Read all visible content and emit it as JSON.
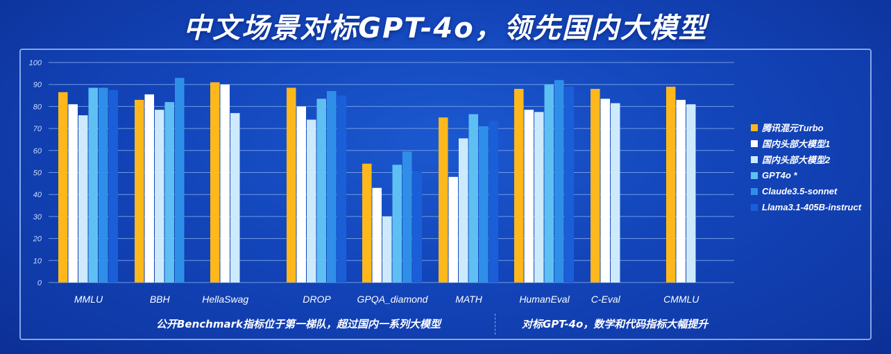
{
  "title": "中文场景对标GPT-4o，领先国内大模型",
  "colors": {
    "series": [
      "#ffb81c",
      "#ffffff",
      "#cdeafc",
      "#5ec0f2",
      "#2f8fe8",
      "#1a5fd8"
    ],
    "grid": "#6f9be6",
    "axis_text": "#c8dcff"
  },
  "chart_data": {
    "type": "bar",
    "title": "中文场景对标GPT-4o，领先国内大模型",
    "xlabel": "",
    "ylabel": "",
    "ylim": [
      0,
      100
    ],
    "yticks": [
      0,
      10,
      20,
      30,
      40,
      50,
      60,
      70,
      80,
      90,
      100
    ],
    "grid": true,
    "legend_position": "right",
    "categories": [
      "MMLU",
      "BBH",
      "HellaSwag",
      "DROP",
      "GPQA_diamond",
      "MATH",
      "HumanEval",
      "C-Eval",
      "CMMLU"
    ],
    "series": [
      {
        "name": "腾讯混元Turbo",
        "values": [
          86.5,
          83.0,
          91.0,
          88.5,
          54.0,
          75.0,
          88.0,
          88.0,
          89.0
        ]
      },
      {
        "name": "国内头部大模型1",
        "values": [
          81.0,
          85.5,
          90.0,
          80.0,
          43.0,
          48.0,
          78.5,
          83.5,
          83.0
        ]
      },
      {
        "name": "国内头部大模型2",
        "values": [
          76.0,
          78.5,
          77.0,
          74.0,
          30.0,
          65.5,
          77.5,
          81.5,
          81.0
        ]
      },
      {
        "name": "GPT4o *",
        "values": [
          88.5,
          82.0,
          null,
          83.5,
          53.5,
          76.5,
          90.0,
          null,
          null
        ]
      },
      {
        "name": "Claude3.5-sonnet",
        "values": [
          88.5,
          93.0,
          null,
          87.0,
          59.5,
          71.0,
          92.0,
          null,
          null
        ]
      },
      {
        "name": "Llama3.1-405B-instruct",
        "values": [
          87.5,
          null,
          null,
          85.0,
          50.5,
          73.5,
          89.0,
          null,
          null
        ]
      }
    ]
  },
  "footer": {
    "left": "公开Benchmark指标位于第一梯队，超过国内一系列大模型",
    "right": "对标GPT-4o，数学和代码指标大幅提升"
  }
}
